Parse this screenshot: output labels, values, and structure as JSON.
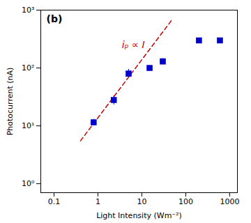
{
  "chart_data": {
    "type": "scatter",
    "log": true,
    "grid": false,
    "xlabel": "Light Intensity (Wm⁻²)",
    "ylabel": "Photocurrent (nA)",
    "xlim": [
      0.05,
      1500
    ],
    "ylim": [
      0.7,
      1000
    ],
    "xticks": [
      0.1,
      1,
      10,
      100,
      1000
    ],
    "yticks": [
      {
        "value": 1,
        "label": "10⁰"
      },
      {
        "value": 10,
        "label": "10¹"
      },
      {
        "value": 100,
        "label": "10²"
      },
      {
        "value": 1000,
        "label": "10³"
      }
    ],
    "series": [
      {
        "type": "line",
        "x": [
          0.4,
          50.0
        ],
        "values": [
          5.5,
          700.0
        ],
        "color": "#CC0000",
        "line_style": "dashed"
      },
      {
        "type": "scatter",
        "x": [
          0.8,
          2.3,
          5.0,
          15.0,
          30.0,
          200.0,
          600.0
        ],
        "values": [
          11.5,
          28.0,
          80.0,
          100.0,
          130.0,
          300.0,
          300.0
        ],
        "x_err": [
          0.08,
          0.2,
          0.5,
          1.5,
          4.0,
          20.0,
          30.0
        ],
        "y_err_lo": [
          1.5,
          5.0,
          8.0,
          8.0,
          15.0,
          0.0,
          0.0
        ],
        "y_err_hi": [
          1.5,
          5.0,
          15.0,
          8.0,
          15.0,
          0.0,
          0.0
        ],
        "color": "#0000CC",
        "marker": "square"
      }
    ],
    "annotations": [
      {
        "text": "iₚ ∝ I",
        "x": 3.5,
        "y": 220.0,
        "color": "#CC0000"
      },
      {
        "text": "(b)"
      }
    ]
  }
}
